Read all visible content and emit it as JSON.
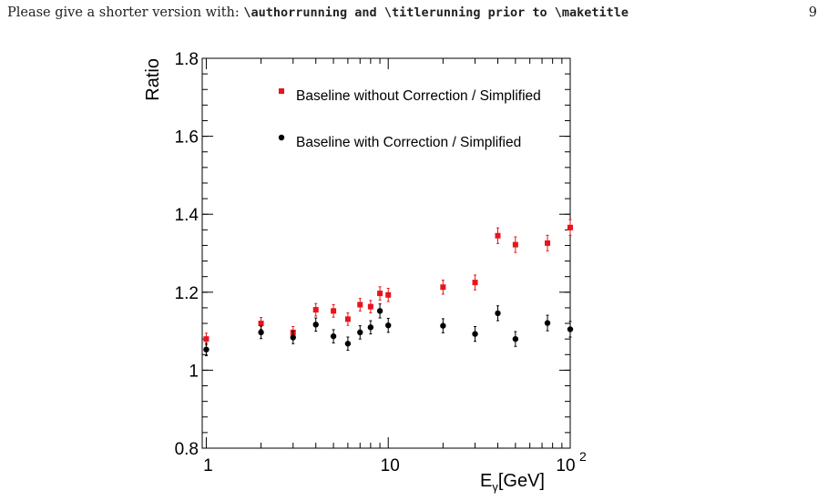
{
  "header": {
    "text_prefix": "Please give a shorter version with: ",
    "cmd_author": "\\authorrunning",
    "text_and": " and ",
    "cmd_title": "\\titlerunning",
    "text_prior": " prior to ",
    "cmd_make": "\\maketitle",
    "page_number": "9"
  },
  "chart_data": {
    "type": "scatter",
    "xscale": "log",
    "xlim": [
      0.95,
      100
    ],
    "ylim": [
      0.8,
      1.8
    ],
    "ylabel": "Ratio",
    "xlabel_main": "E",
    "xlabel_sub": "γ",
    "xlabel_unit": "[GeV]",
    "x_ticks": [
      {
        "value": 1,
        "label": "1"
      },
      {
        "value": 10,
        "label": "10"
      }
    ],
    "x_tick_last": {
      "value": 100,
      "base": "10",
      "exp": "2"
    },
    "y_ticks": [
      {
        "value": 0.8,
        "label": "0.8"
      },
      {
        "value": 1.0,
        "label": "1"
      },
      {
        "value": 1.2,
        "label": "1.2"
      },
      {
        "value": 1.4,
        "label": "1.4"
      },
      {
        "value": 1.6,
        "label": "1.6"
      },
      {
        "value": 1.8,
        "label": "1.8"
      }
    ],
    "legend_position": "top-right",
    "series": [
      {
        "name": "Baseline without Correction / Simplified",
        "marker": "square",
        "color": "#e8141b",
        "points": [
          {
            "x": 1,
            "y": 1.08,
            "err": 0.015
          },
          {
            "x": 2,
            "y": 1.12,
            "err": 0.015
          },
          {
            "x": 3,
            "y": 1.097,
            "err": 0.015
          },
          {
            "x": 4,
            "y": 1.155,
            "err": 0.016
          },
          {
            "x": 5,
            "y": 1.152,
            "err": 0.016
          },
          {
            "x": 6,
            "y": 1.131,
            "err": 0.016
          },
          {
            "x": 7,
            "y": 1.168,
            "err": 0.016
          },
          {
            "x": 8,
            "y": 1.163,
            "err": 0.016
          },
          {
            "x": 9,
            "y": 1.197,
            "err": 0.017
          },
          {
            "x": 10,
            "y": 1.193,
            "err": 0.017
          },
          {
            "x": 20,
            "y": 1.213,
            "err": 0.018
          },
          {
            "x": 30,
            "y": 1.225,
            "err": 0.019
          },
          {
            "x": 40,
            "y": 1.345,
            "err": 0.02
          },
          {
            "x": 50,
            "y": 1.322,
            "err": 0.02
          },
          {
            "x": 75,
            "y": 1.326,
            "err": 0.02
          },
          {
            "x": 100,
            "y": 1.366,
            "err": 0.02
          }
        ]
      },
      {
        "name": "Baseline with Correction / Simplified",
        "marker": "circle",
        "color": "#000000",
        "points": [
          {
            "x": 1,
            "y": 1.053,
            "err": 0.016
          },
          {
            "x": 2,
            "y": 1.097,
            "err": 0.016
          },
          {
            "x": 3,
            "y": 1.084,
            "err": 0.016
          },
          {
            "x": 4,
            "y": 1.117,
            "err": 0.017
          },
          {
            "x": 5,
            "y": 1.087,
            "err": 0.017
          },
          {
            "x": 6,
            "y": 1.068,
            "err": 0.017
          },
          {
            "x": 7,
            "y": 1.097,
            "err": 0.017
          },
          {
            "x": 8,
            "y": 1.11,
            "err": 0.017
          },
          {
            "x": 9,
            "y": 1.152,
            "err": 0.018
          },
          {
            "x": 10,
            "y": 1.115,
            "err": 0.018
          },
          {
            "x": 20,
            "y": 1.114,
            "err": 0.018
          },
          {
            "x": 30,
            "y": 1.093,
            "err": 0.019
          },
          {
            "x": 40,
            "y": 1.146,
            "err": 0.019
          },
          {
            "x": 50,
            "y": 1.08,
            "err": 0.019
          },
          {
            "x": 75,
            "y": 1.121,
            "err": 0.02
          },
          {
            "x": 100,
            "y": 1.105,
            "err": 0.02
          }
        ]
      }
    ]
  }
}
